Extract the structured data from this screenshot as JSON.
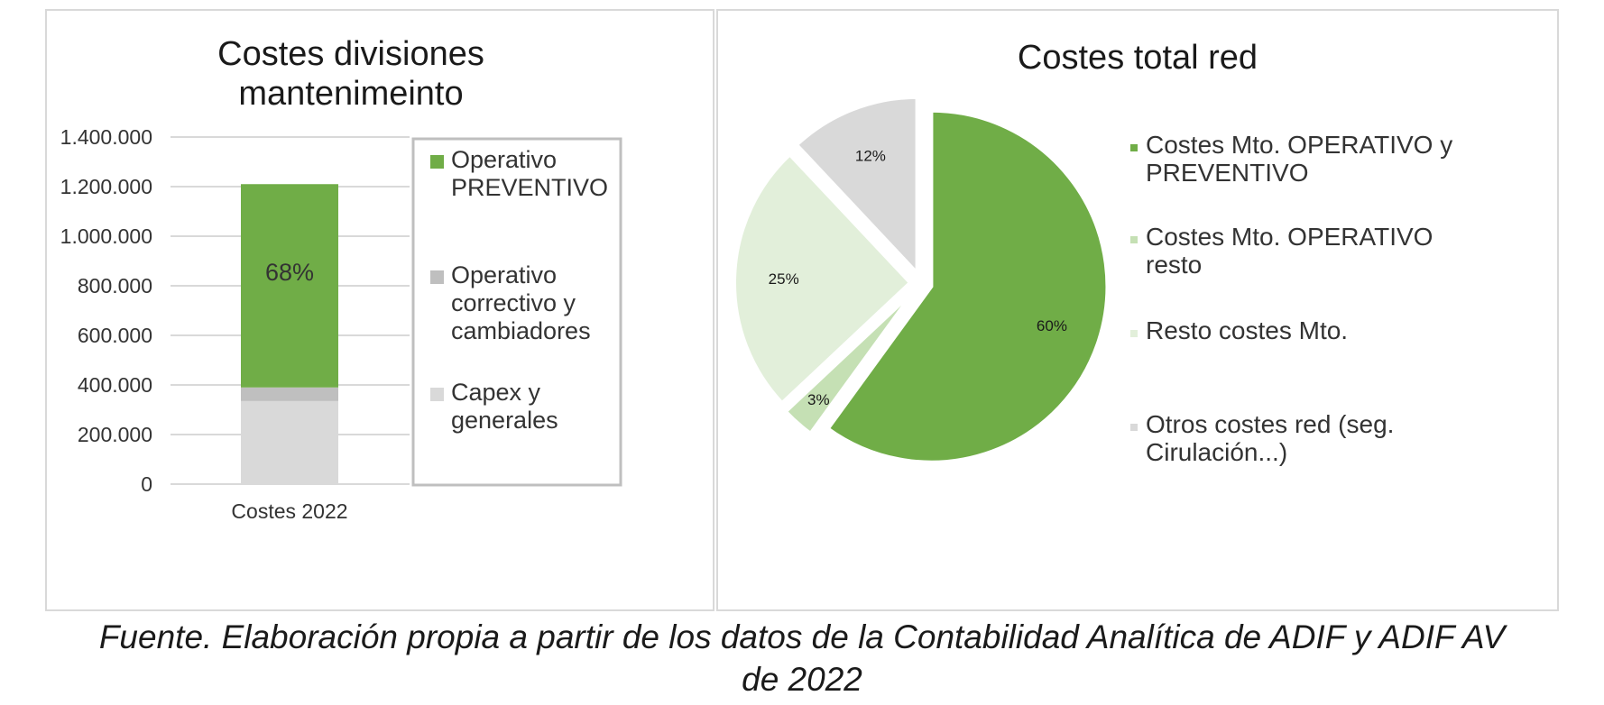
{
  "chart_data": [
    {
      "type": "bar",
      "title": "Costes divisiones mantenimeinto",
      "title_lines": [
        "Costes divisiones",
        "mantenimeinto"
      ],
      "categories": [
        "Costes 2022"
      ],
      "ylim": [
        0,
        1400000
      ],
      "yticks": [
        0,
        200000,
        400000,
        600000,
        800000,
        1000000,
        1200000,
        1400000
      ],
      "ytick_labels": [
        "0",
        "200.000",
        "400.000",
        "600.000",
        "800.000",
        "1.000.000",
        "1.200.000",
        "1.400.000"
      ],
      "stacked": true,
      "series": [
        {
          "name": "Capex y generales",
          "legend_lines": [
            "Capex y",
            "generales"
          ],
          "values": [
            335000
          ],
          "color": "#d9d9d9"
        },
        {
          "name": "Operativo correctivo y cambiadores",
          "legend_lines": [
            "Operativo",
            "correctivo y",
            "cambiadores"
          ],
          "values": [
            55000
          ],
          "color": "#bfbfbf"
        },
        {
          "name": "Operativo PREVENTIVO",
          "legend_lines": [
            "Operativo",
            "PREVENTIVO"
          ],
          "values": [
            820000
          ],
          "color": "#70ad47",
          "data_label": "68%"
        }
      ],
      "legend_order": [
        2,
        1,
        0
      ],
      "grid": true,
      "legend_position": "right"
    },
    {
      "type": "pie",
      "title": "Costes total red",
      "slices": [
        {
          "label": "Costes Mto. OPERATIVO y PREVENTIVO",
          "legend_lines": [
            "Costes Mto. OPERATIVO y",
            "PREVENTIVO"
          ],
          "value": 60,
          "data_label": "60%",
          "color": "#70ad47"
        },
        {
          "label": "Costes Mto. OPERATIVO resto",
          "legend_lines": [
            "Costes Mto. OPERATIVO",
            "resto"
          ],
          "value": 3,
          "data_label": "3%",
          "color": "#c5e0b4"
        },
        {
          "label": "Resto costes Mto.",
          "legend_lines": [
            "Resto costes Mto."
          ],
          "value": 25,
          "data_label": "25%",
          "color": "#e2efda"
        },
        {
          "label": "Otros costes red (seg. Cirulación...)",
          "legend_lines": [
            "Otros costes red (seg.",
            "Cirulación...)"
          ],
          "value": 12,
          "data_label": "12%",
          "color": "#d9d9d9"
        }
      ],
      "exploded": true,
      "legend_position": "right"
    }
  ],
  "caption": {
    "line1": "Fuente. Elaboración propia a partir de los datos de la Contabilidad Analítica de ADIF y ADIF AV",
    "line2": "de 2022"
  }
}
